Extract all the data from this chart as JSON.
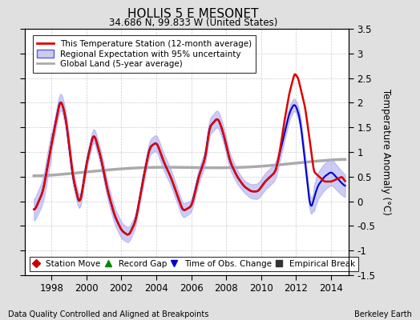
{
  "title": "HOLLIS 5 E MESONET",
  "subtitle": "34.686 N, 99.833 W (United States)",
  "ylabel": "Temperature Anomaly (°C)",
  "footer_left": "Data Quality Controlled and Aligned at Breakpoints",
  "footer_right": "Berkeley Earth",
  "xlim": [
    1996.5,
    2015.0
  ],
  "ylim": [
    -1.5,
    3.5
  ],
  "yticks": [
    -1.5,
    -1.0,
    -0.5,
    0,
    0.5,
    1.0,
    1.5,
    2.0,
    2.5,
    3.0,
    3.5
  ],
  "ytick_labels": [
    "-1.5",
    "-1",
    "-0.5",
    "0",
    "0.5",
    "1",
    "1.5",
    "2",
    "2.5",
    "3",
    "3.5"
  ],
  "xticks": [
    1998,
    2000,
    2002,
    2004,
    2006,
    2008,
    2010,
    2012,
    2014
  ],
  "bg_color": "#e0e0e0",
  "plot_bg_color": "#ffffff",
  "grid_color": "#cccccc",
  "station_line_color": "#dd0000",
  "regional_line_color": "#0000cc",
  "regional_fill_color": "#aaaaee",
  "global_line_color": "#aaaaaa",
  "legend_items": [
    {
      "label": "This Temperature Station (12-month average)",
      "color": "#dd0000",
      "lw": 2
    },
    {
      "label": "Regional Expectation with 95% uncertainty",
      "color": "#0000cc",
      "lw": 1.5
    },
    {
      "label": "Global Land (5-year average)",
      "color": "#aaaaaa",
      "lw": 2
    }
  ],
  "marker_legend": [
    {
      "label": "Station Move",
      "color": "#cc0000",
      "marker": "D"
    },
    {
      "label": "Record Gap",
      "color": "#008800",
      "marker": "^"
    },
    {
      "label": "Time of Obs. Change",
      "color": "#0000cc",
      "marker": "v"
    },
    {
      "label": "Empirical Break",
      "color": "#333333",
      "marker": "s"
    }
  ]
}
